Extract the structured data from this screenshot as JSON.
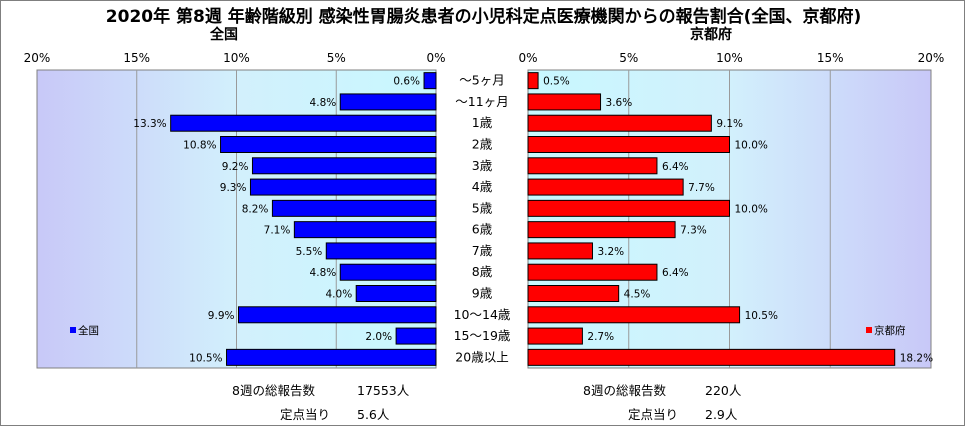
{
  "chart_data": {
    "type": "bar",
    "title": "2020年 第8週 年齢階級別 感染性胃腸炎患者の小児科定点医療機関からの報告割合(全国、京都府)",
    "categories": [
      "～5ヶ月",
      "～11ヶ月",
      "1歳",
      "2歳",
      "3歳",
      "4歳",
      "5歳",
      "6歳",
      "7歳",
      "8歳",
      "9歳",
      "10～14歳",
      "15～19歳",
      "20歳以上"
    ],
    "xlim": [
      0,
      20
    ],
    "ticks": [
      "0%",
      "5%",
      "10%",
      "15%",
      "20%"
    ],
    "grid": true,
    "series": [
      {
        "name": "全国",
        "color": "#0000ff",
        "values": [
          0.6,
          4.8,
          13.3,
          10.8,
          9.2,
          9.3,
          8.2,
          7.1,
          5.5,
          4.8,
          4.0,
          9.9,
          2.0,
          10.5
        ],
        "labels": [
          "0.6%",
          "4.8%",
          "13.3%",
          "10.8%",
          "9.2%",
          "9.3%",
          "8.2%",
          "7.1%",
          "5.5%",
          "4.8%",
          "4.0%",
          "9.9%",
          "2.0%",
          "10.5%"
        ],
        "legend_placement": "bottom-left"
      },
      {
        "name": "京都府",
        "color": "#ff0000",
        "values": [
          0.5,
          3.6,
          9.1,
          10.0,
          6.4,
          7.7,
          10.0,
          7.3,
          3.2,
          6.4,
          4.5,
          10.5,
          2.7,
          18.2
        ],
        "labels": [
          "0.5%",
          "3.6%",
          "9.1%",
          "10.0%",
          "6.4%",
          "7.7%",
          "10.0%",
          "7.3%",
          "3.2%",
          "6.4%",
          "4.5%",
          "10.5%",
          "2.7%",
          "18.2%"
        ],
        "legend_placement": "bottom-right"
      }
    ]
  },
  "footer": {
    "national": {
      "total_label": "8週の総報告数",
      "total_value": "17553人",
      "per_label": "定点当り",
      "per_value": "5.6人"
    },
    "kyoto": {
      "total_label": "8週の総報告数",
      "total_value": "220人",
      "per_label": "定点当り",
      "per_value": "2.9人"
    }
  }
}
